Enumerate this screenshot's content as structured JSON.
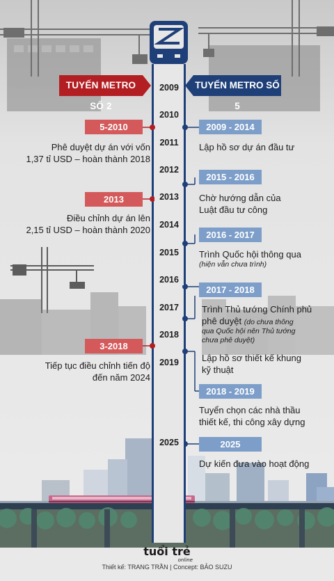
{
  "headers": {
    "left": "TUYẾN METRO SỐ 2",
    "right": "TUYẾN METRO SỐ 5"
  },
  "years": [
    "2009",
    "2010",
    "2011",
    "2012",
    "2013",
    "2014",
    "2015",
    "2016",
    "2017",
    "2018",
    "2019",
    "2025"
  ],
  "left_events": [
    {
      "badge": "5-2010",
      "lines": [
        "Phê duyệt dự án với vốn",
        "1,37 tỉ USD – hoàn thành 2018"
      ]
    },
    {
      "badge": "2013",
      "lines": [
        "Điều chỉnh dự án lên",
        "2,15 tỉ USD – hoàn thành 2020"
      ]
    },
    {
      "badge": "3-2018",
      "lines": [
        "Tiếp tục điều chỉnh tiến độ",
        "đến năm 2024"
      ]
    }
  ],
  "right_events": [
    {
      "badge": "2009 - 2014",
      "lines": [
        "Lập hồ sơ dự án đầu tư"
      ]
    },
    {
      "badge": "2015 - 2016",
      "lines": [
        "Chờ hướng dẫn của",
        "Luật đầu tư công"
      ]
    },
    {
      "badge": "2016 - 2017",
      "lines": [
        "Trình Quốc hội thông qua"
      ],
      "note": "(hiện vẫn chưa trình)"
    },
    {
      "badge": "2017 - 2018",
      "lines": [
        "Trình Thủ tướng Chính phủ",
        "phê duyệt"
      ],
      "note_inline": "(do chưa thông",
      "note_lines": [
        "qua Quốc hội nên Thủ tướng",
        "chưa phê duyệt)"
      ]
    },
    {
      "lines": [
        "Lập hồ sơ thiết kế khung",
        "kỹ thuật"
      ]
    },
    {
      "badge": "2018 - 2019",
      "lines": [
        "Tuyển chọn các nhà thầu",
        "thiết kế, thi công xây dựng"
      ]
    },
    {
      "badge": "2025",
      "lines": [
        "Dự kiến đưa vào hoạt động"
      ]
    }
  ],
  "footer": {
    "logo": "tuổi trẻ",
    "logo_sub": "online",
    "credit": "Thiết kế: TRANG TRẦN | Concept: BẢO SUZU"
  },
  "colors": {
    "red": "#b31e22",
    "red_light": "#d4595a",
    "blue": "#1f3f78",
    "blue_light": "#7d9ec9",
    "track": "#1f3f78"
  }
}
